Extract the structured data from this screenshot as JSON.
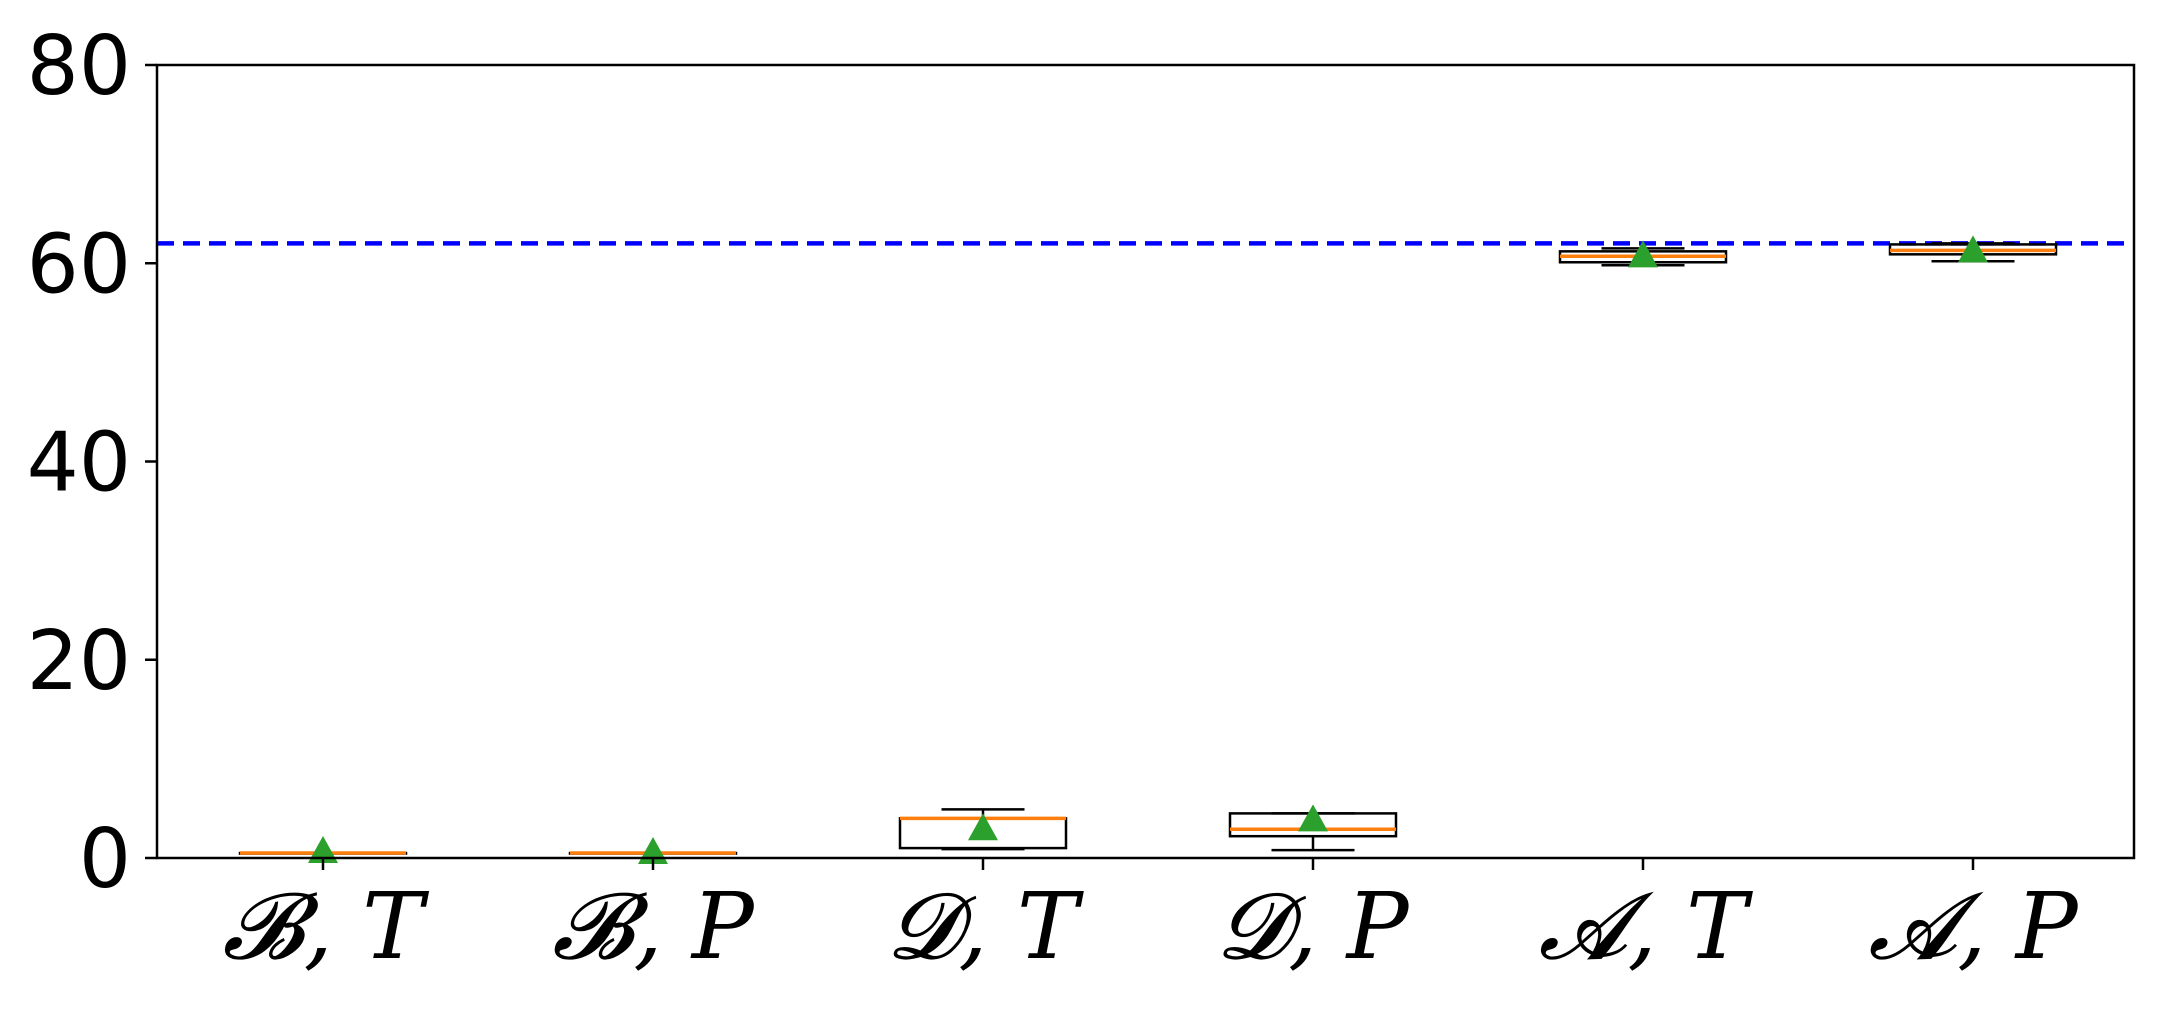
{
  "chart_data": {
    "type": "box",
    "title": "",
    "xlabel": "",
    "ylabel": "",
    "ylim": [
      0,
      80
    ],
    "yticks": [
      0,
      20,
      40,
      60,
      80
    ],
    "grid": false,
    "reference_line": {
      "value": 62,
      "color": "#0000ff",
      "style": "dashed"
    },
    "colors": {
      "box": "#000000",
      "median": "#ff7f0e",
      "mean": "#2ca02c"
    },
    "categories": [
      "𝓑, T",
      "𝓑, P",
      "𝓓, T",
      "𝓓, P",
      "𝓐, T",
      "𝓐, P"
    ],
    "boxes": [
      {
        "whisker_low": 0.5,
        "q1": 0.5,
        "median": 0.5,
        "q3": 0.5,
        "whisker_high": 0.5,
        "mean": 0.7
      },
      {
        "whisker_low": 0.5,
        "q1": 0.5,
        "median": 0.5,
        "q3": 0.5,
        "whisker_high": 0.5,
        "mean": 0.6
      },
      {
        "whisker_low": 0.9,
        "q1": 1.0,
        "median": 4.0,
        "q3": 4.0,
        "whisker_high": 4.9,
        "mean": 3.0
      },
      {
        "whisker_low": 0.8,
        "q1": 2.2,
        "median": 2.9,
        "q3": 4.5,
        "whisker_high": 4.5,
        "mean": 3.9
      },
      {
        "whisker_low": 59.8,
        "q1": 60.1,
        "median": 60.7,
        "q3": 61.2,
        "whisker_high": 61.5,
        "mean": 60.8
      },
      {
        "whisker_low": 60.2,
        "q1": 60.9,
        "median": 61.3,
        "q3": 61.9,
        "whisker_high": 62.0,
        "mean": 61.3
      }
    ]
  }
}
